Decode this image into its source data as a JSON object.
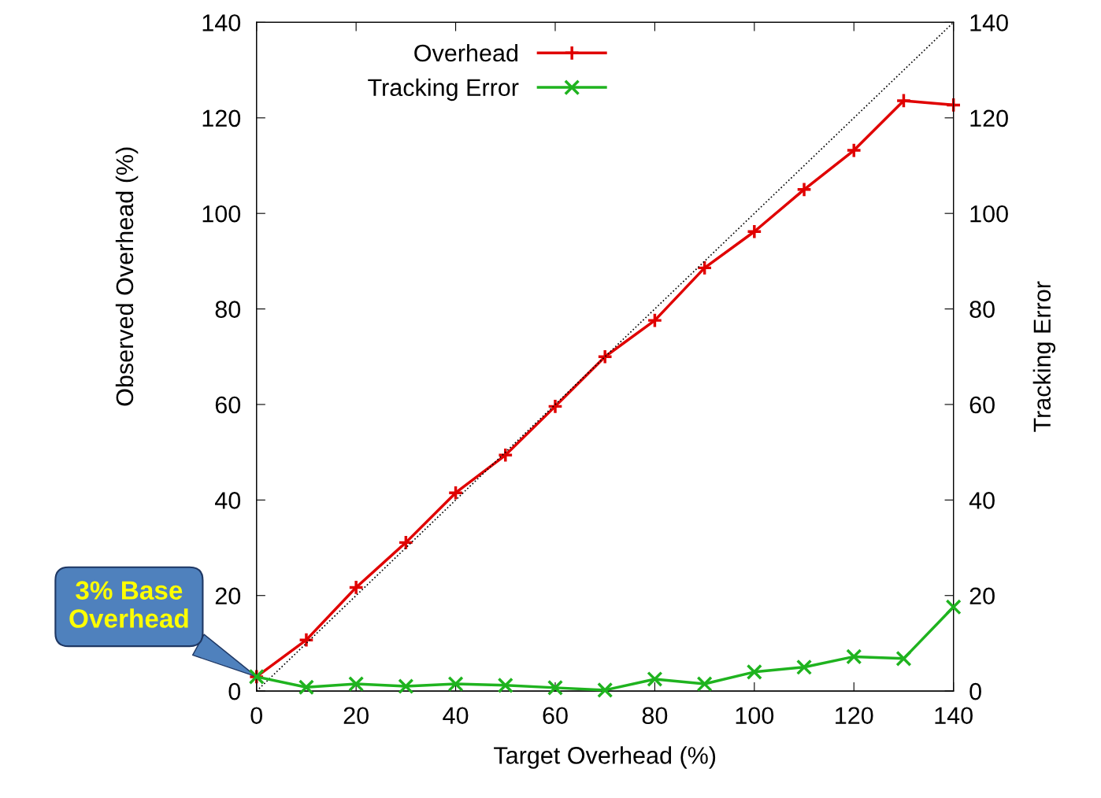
{
  "chart_data": {
    "type": "line",
    "xlabel": "Target Overhead (%)",
    "ylabel": "Observed Overhead (%)",
    "y2label": "Tracking Error",
    "x": [
      0,
      10,
      20,
      30,
      40,
      50,
      60,
      70,
      80,
      90,
      100,
      110,
      120,
      130,
      140
    ],
    "series": [
      {
        "name": "Overhead",
        "color": "#e00000",
        "marker": "plus",
        "values": [
          3,
          10.7,
          21.7,
          31.1,
          41.5,
          49.4,
          59.6,
          70,
          77.6,
          88.6,
          96.2,
          105,
          113.2,
          123.6,
          122.7
        ]
      },
      {
        "name": "Tracking Error",
        "color": "#1fb31f",
        "marker": "cross",
        "axis": "y2",
        "values": [
          3,
          0.8,
          1.5,
          1,
          1.5,
          1.2,
          0.7,
          0.2,
          2.5,
          1.5,
          4,
          5,
          7.2,
          6.8,
          17.6
        ]
      },
      {
        "type": "line",
        "color": "#000000",
        "line_style": "dotted",
        "marker": "none",
        "x": [
          0,
          140
        ],
        "values": [
          0,
          140
        ]
      }
    ],
    "xlim": [
      0,
      140
    ],
    "xticks": [
      0,
      20,
      40,
      60,
      80,
      100,
      120,
      140
    ],
    "ylim": [
      0,
      140
    ],
    "yticks": [
      0,
      20,
      40,
      60,
      80,
      100,
      120,
      140
    ],
    "y2lim": [
      0,
      140
    ],
    "y2ticks": [
      0,
      20,
      40,
      60,
      80,
      100,
      120,
      140
    ],
    "grid": false,
    "legend": "top",
    "annotations": [
      "3% Base\nOverhead"
    ]
  }
}
